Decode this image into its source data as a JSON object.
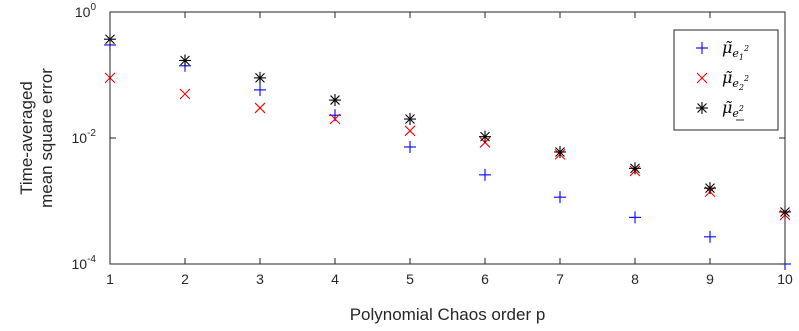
{
  "chart_data": {
    "type": "scatter",
    "x_label": "Polynomial Chaos order p",
    "y_label_lines": [
      "Time-averaged",
      "mean square error"
    ],
    "x_ticks": [
      1,
      2,
      3,
      4,
      5,
      6,
      7,
      8,
      9,
      10
    ],
    "y_ticks": [
      {
        "base": "10",
        "exp": "0",
        "value": 1
      },
      {
        "base": "10",
        "exp": "-2",
        "value": 0.01
      },
      {
        "base": "10",
        "exp": "-4",
        "value": 0.0001
      }
    ],
    "xlim": [
      1,
      10
    ],
    "ylim": [
      0.0001,
      1
    ],
    "y_scale": "log",
    "grid": false,
    "legend_position": "top-right",
    "series": [
      {
        "name": "μ̃_e1²",
        "legend_main": "μ̃",
        "legend_sub": "e",
        "legend_subsub": "1",
        "legend_sup": "2",
        "marker": "plus",
        "color": "#0000ff",
        "x": [
          1,
          2,
          3,
          4,
          5,
          6,
          7,
          8,
          9,
          10
        ],
        "y": [
          0.3,
          0.14,
          0.058,
          0.023,
          0.0072,
          0.0026,
          0.00115,
          0.00055,
          0.00027,
          0.0001
        ]
      },
      {
        "name": "μ̃_e2²",
        "legend_main": "μ̃",
        "legend_sub": "e",
        "legend_subsub": "2",
        "legend_sup": "2",
        "marker": "x",
        "color": "#ff0000",
        "x": [
          1,
          2,
          3,
          4,
          5,
          6,
          7,
          8,
          9,
          10
        ],
        "y": [
          0.09,
          0.05,
          0.03,
          0.02,
          0.013,
          0.0085,
          0.0055,
          0.003,
          0.0014,
          0.0006
        ]
      },
      {
        "name": "μ̃_e²",
        "legend_main": "μ̃",
        "legend_sub": "e",
        "legend_subsub": "",
        "legend_sup": "2",
        "marker": "star",
        "color": "#000000",
        "x": [
          1,
          2,
          3,
          4,
          5,
          6,
          7,
          8,
          9,
          10
        ],
        "y": [
          0.37,
          0.17,
          0.09,
          0.04,
          0.02,
          0.0105,
          0.006,
          0.0033,
          0.0016,
          0.00067
        ]
      }
    ]
  }
}
